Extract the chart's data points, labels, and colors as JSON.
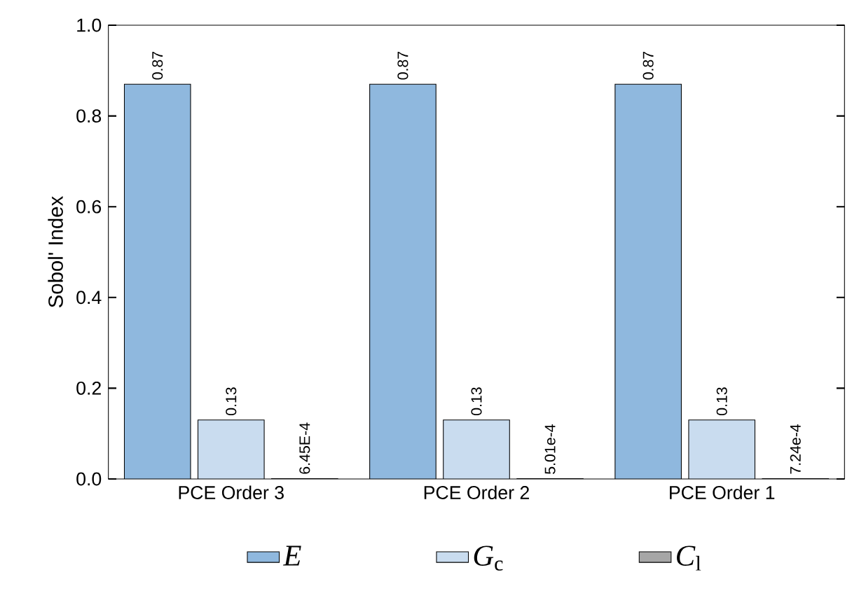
{
  "chart_data": {
    "type": "bar",
    "ylabel": "Sobol' Index",
    "categories": [
      "PCE Order 3",
      "PCE Order 2",
      "PCE Order 1"
    ],
    "series": [
      {
        "name": "*E*",
        "color": "#8fb8de",
        "values": [
          0.87,
          0.87,
          0.87
        ],
        "value_labels": [
          "0.87",
          "0.87",
          "0.87"
        ]
      },
      {
        "name": "*G*$_{c}$",
        "color": "#c9dcef",
        "values": [
          0.13,
          0.13,
          0.13
        ],
        "value_labels": [
          "0.13",
          "0.13",
          "0.13"
        ]
      },
      {
        "name": "*C*$_{l}$",
        "color": "#a6a6a6",
        "values": [
          0.000645,
          0.000501,
          0.000724
        ],
        "value_labels": [
          "6.45E-4",
          "5.01e-4",
          "7.24e-4"
        ]
      }
    ],
    "ylim": [
      0,
      1.0
    ],
    "yticks": [
      {
        "value": 0,
        "label": "0.0"
      },
      {
        "value": 0.2,
        "label": "0.2"
      },
      {
        "value": 0.4,
        "label": "0.4"
      },
      {
        "value": 0.6,
        "label": "0.6"
      },
      {
        "value": 0.8,
        "label": "0.8"
      },
      {
        "value": 1.0,
        "label": "1.0"
      }
    ],
    "grid": false,
    "legend": "bottom"
  }
}
